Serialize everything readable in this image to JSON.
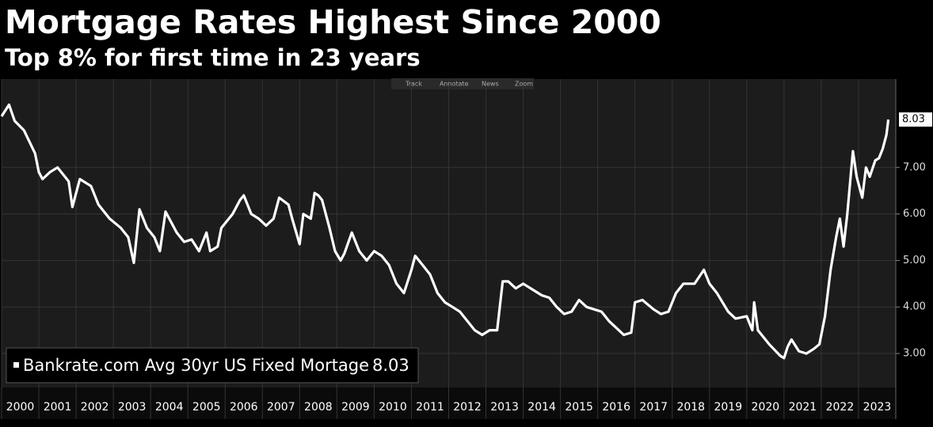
{
  "chart_data": {
    "type": "line",
    "title": "Mortgage Rates Highest Since 2000",
    "subtitle": "Top 8% for first time in 23 years",
    "toolbar": [
      "Track",
      "Annotate",
      "News",
      "Zoom"
    ],
    "x": [
      2000.0,
      2000.2,
      2000.35,
      2000.6,
      2000.9,
      2001.0,
      2001.1,
      2001.3,
      2001.5,
      2001.8,
      2001.9,
      2002.1,
      2002.4,
      2002.6,
      2002.9,
      2003.2,
      2003.4,
      2003.55,
      2003.7,
      2003.9,
      2004.1,
      2004.25,
      2004.4,
      2004.7,
      2004.9,
      2005.1,
      2005.3,
      2005.5,
      2005.6,
      2005.8,
      2005.9,
      2006.2,
      2006.4,
      2006.5,
      2006.7,
      2006.9,
      2007.1,
      2007.3,
      2007.45,
      2007.7,
      2007.8,
      2008.0,
      2008.1,
      2008.3,
      2008.4,
      2008.5,
      2008.6,
      2008.8,
      2008.95,
      2009.1,
      2009.2,
      2009.4,
      2009.6,
      2009.8,
      2010.0,
      2010.2,
      2010.4,
      2010.6,
      2010.8,
      2011.0,
      2011.1,
      2011.3,
      2011.5,
      2011.7,
      2011.9,
      2012.1,
      2012.3,
      2012.5,
      2012.7,
      2012.9,
      2013.1,
      2013.3,
      2013.45,
      2013.6,
      2013.8,
      2014.0,
      2014.3,
      2014.5,
      2014.7,
      2014.9,
      2015.1,
      2015.3,
      2015.5,
      2015.7,
      2015.9,
      2016.1,
      2016.3,
      2016.5,
      2016.7,
      2016.9,
      2017.0,
      2017.2,
      2017.5,
      2017.7,
      2017.9,
      2018.1,
      2018.3,
      2018.6,
      2018.85,
      2019.0,
      2019.2,
      2019.5,
      2019.7,
      2020.0,
      2020.15,
      2020.2,
      2020.3,
      2020.6,
      2020.9,
      2021.0,
      2021.1,
      2021.2,
      2021.4,
      2021.6,
      2021.8,
      2021.95,
      2022.1,
      2022.25,
      2022.4,
      2022.5,
      2022.6,
      2022.7,
      2022.8,
      2022.85,
      2022.95,
      2023.1,
      2023.2,
      2023.3,
      2023.45,
      2023.55,
      2023.65,
      2023.75,
      2023.8
    ],
    "series": [
      {
        "name": "Bankrate.com Avg 30yr US Fixed Mortage",
        "color": "#ffffff",
        "values": [
          8.1,
          8.35,
          8.0,
          7.8,
          7.3,
          6.9,
          6.75,
          6.9,
          7.0,
          6.7,
          6.15,
          6.75,
          6.6,
          6.2,
          5.9,
          5.7,
          5.5,
          4.95,
          6.1,
          5.7,
          5.5,
          5.2,
          6.05,
          5.6,
          5.4,
          5.45,
          5.2,
          5.6,
          5.2,
          5.3,
          5.7,
          6.0,
          6.3,
          6.4,
          6.0,
          5.9,
          5.75,
          5.9,
          6.35,
          6.2,
          5.9,
          5.35,
          6.0,
          5.9,
          6.45,
          6.4,
          6.3,
          5.7,
          5.2,
          5.0,
          5.15,
          5.6,
          5.2,
          5.0,
          5.2,
          5.1,
          4.9,
          4.5,
          4.3,
          4.8,
          5.1,
          4.9,
          4.7,
          4.3,
          4.1,
          4.0,
          3.9,
          3.7,
          3.5,
          3.4,
          3.5,
          3.5,
          4.55,
          4.55,
          4.4,
          4.5,
          4.35,
          4.25,
          4.2,
          4.0,
          3.85,
          3.9,
          4.15,
          4.0,
          3.95,
          3.9,
          3.7,
          3.55,
          3.4,
          3.45,
          4.1,
          4.15,
          3.95,
          3.85,
          3.9,
          4.3,
          4.5,
          4.5,
          4.8,
          4.5,
          4.3,
          3.9,
          3.75,
          3.8,
          3.5,
          4.1,
          3.5,
          3.2,
          2.95,
          2.9,
          3.15,
          3.3,
          3.05,
          3.0,
          3.1,
          3.2,
          3.8,
          4.8,
          5.5,
          5.9,
          5.3,
          6.0,
          6.9,
          7.35,
          6.8,
          6.35,
          7.0,
          6.8,
          7.15,
          7.2,
          7.4,
          7.7,
          8.03
        ]
      }
    ],
    "xlim": [
      2000,
      2024
    ],
    "xticks": [
      2000,
      2001,
      2002,
      2003,
      2004,
      2005,
      2006,
      2007,
      2008,
      2009,
      2010,
      2011,
      2012,
      2013,
      2014,
      2015,
      2016,
      2017,
      2018,
      2019,
      2020,
      2021,
      2022,
      2023
    ],
    "ylim": [
      2.27,
      8.9
    ],
    "yticks": [
      {
        "value": 3,
        "label": "3.00"
      },
      {
        "value": 4,
        "label": "4.00"
      },
      {
        "value": 5,
        "label": "5.00"
      },
      {
        "value": 6,
        "label": "6.00"
      },
      {
        "value": 7,
        "label": "7.00"
      }
    ],
    "grid": true
  }
}
